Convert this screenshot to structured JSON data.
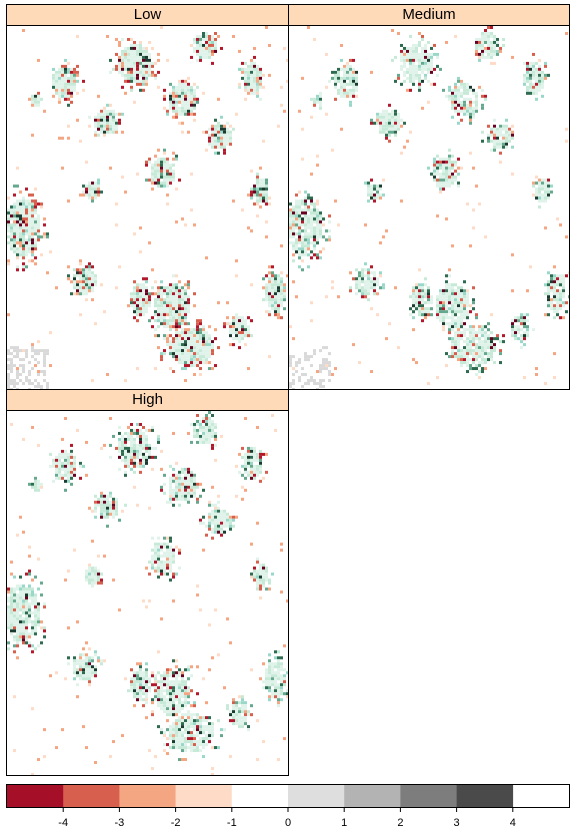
{
  "chart_data": {
    "type": "heatmap",
    "panels": [
      {
        "label": "Low"
      },
      {
        "label": "Medium"
      },
      {
        "label": "High"
      }
    ],
    "colorkey": {
      "breaks": [
        -5,
        -4,
        -3,
        -2,
        -1,
        0,
        1,
        2,
        3,
        4,
        5
      ],
      "colors": [
        "#a50f27",
        "#d6604d",
        "#f4a582",
        "#fddbc7",
        "#ffffff",
        "#dedede",
        "#b3b3b3",
        "#7d7d7d",
        "#4a4a4a"
      ],
      "ticks": [
        -4,
        -3,
        -2,
        -1,
        0,
        1,
        2,
        3,
        4
      ],
      "position": "bottom"
    },
    "cell_palette": {
      "negative": [
        "#67001f",
        "#b2182b",
        "#d6604d",
        "#f4a582",
        "#fddbc7"
      ],
      "positive": [
        "#e0f3ea",
        "#c7e9d7",
        "#99d8c9",
        "#66a88e",
        "#2d6a4f",
        "#1b3a2f"
      ],
      "missing": "#d9d9d9"
    }
  }
}
